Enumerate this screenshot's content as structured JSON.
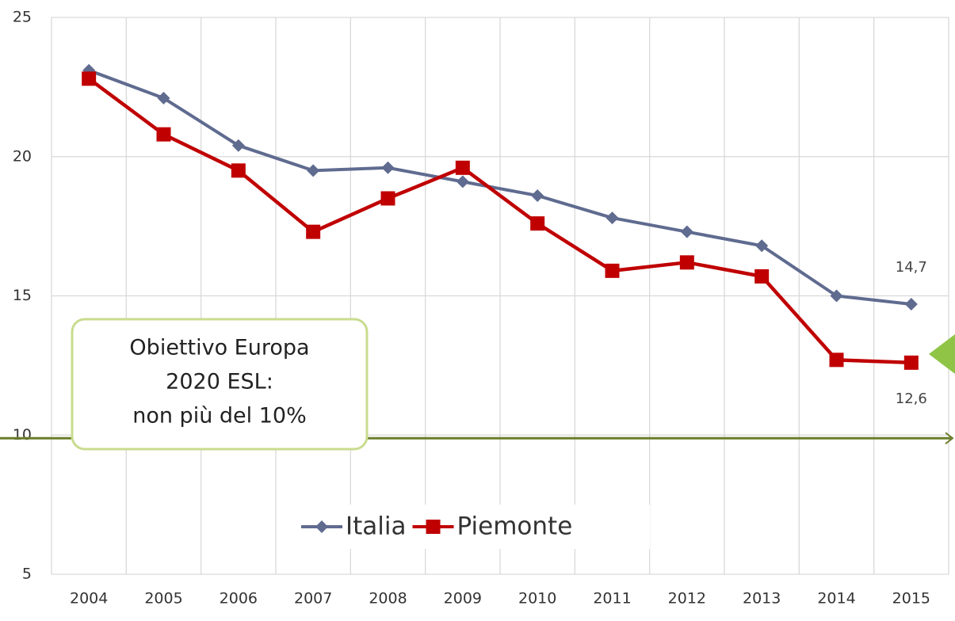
{
  "chart_data": {
    "type": "line",
    "categories": [
      "2004",
      "2005",
      "2006",
      "2007",
      "2008",
      "2009",
      "2010",
      "2011",
      "2012",
      "2013",
      "2014",
      "2015"
    ],
    "series": [
      {
        "name": "Italia",
        "color": "#5f6b8f",
        "marker": "diamond",
        "values": [
          23.1,
          22.1,
          20.4,
          19.5,
          19.6,
          19.1,
          18.6,
          17.8,
          17.3,
          16.8,
          15.0,
          14.7
        ],
        "value_labels": [
          null,
          null,
          null,
          null,
          null,
          null,
          null,
          null,
          null,
          null,
          null,
          "14,7"
        ]
      },
      {
        "name": "Piemonte",
        "color": "#c00000",
        "marker": "square",
        "values": [
          22.8,
          20.8,
          19.5,
          17.3,
          18.5,
          19.6,
          17.6,
          15.9,
          16.2,
          15.7,
          12.7,
          12.6
        ],
        "value_labels": [
          null,
          null,
          null,
          null,
          null,
          null,
          null,
          null,
          null,
          null,
          null,
          "12,6"
        ]
      }
    ],
    "ylim": [
      5,
      25
    ],
    "yticks": [
      5,
      10,
      15,
      20,
      25
    ],
    "grid": true,
    "legend": "bottom",
    "target": {
      "value": 10,
      "color": "#6b7d2a",
      "text": [
        "Obiettivo Europa",
        "2020 ESL:",
        "non più del 10%"
      ]
    }
  }
}
